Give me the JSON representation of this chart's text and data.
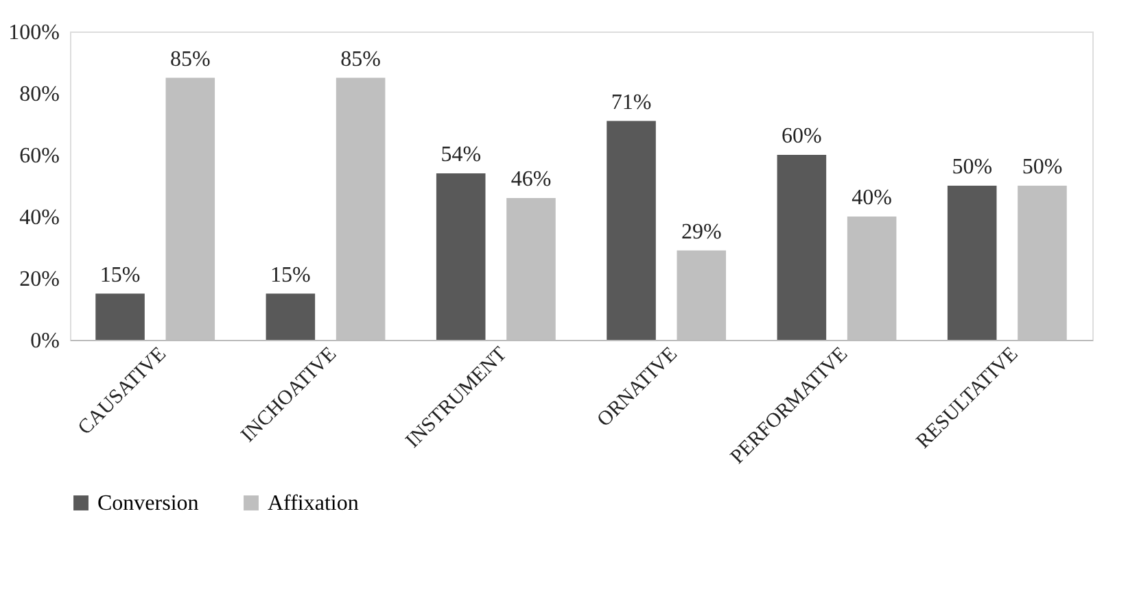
{
  "chart_data": {
    "type": "bar",
    "categories": [
      "CAUSATIVE",
      "INCHOATIVE",
      "INSTRUMENT",
      "ORNATIVE",
      "PERFORMATIVE",
      "RESULTATIVE"
    ],
    "series": [
      {
        "name": "Conversion",
        "color": "#595959",
        "values": [
          15,
          15,
          54,
          71,
          60,
          50
        ],
        "value_labels": [
          "15%",
          "15%",
          "54%",
          "71%",
          "60%",
          "50%"
        ]
      },
      {
        "name": "Affixation",
        "color": "#bfbfbf",
        "values": [
          85,
          85,
          46,
          29,
          40,
          50
        ],
        "value_labels": [
          "85%",
          "85%",
          "46%",
          "29%",
          "40%",
          "50%"
        ]
      }
    ],
    "ylim": [
      0,
      100
    ],
    "yticks": [
      {
        "value": 0,
        "label": "0%"
      },
      {
        "value": 20,
        "label": "20%"
      },
      {
        "value": 40,
        "label": "40%"
      },
      {
        "value": 60,
        "label": "60%"
      },
      {
        "value": 80,
        "label": "80%"
      },
      {
        "value": 100,
        "label": "100%"
      }
    ],
    "grid": false,
    "legend": "bottom"
  }
}
